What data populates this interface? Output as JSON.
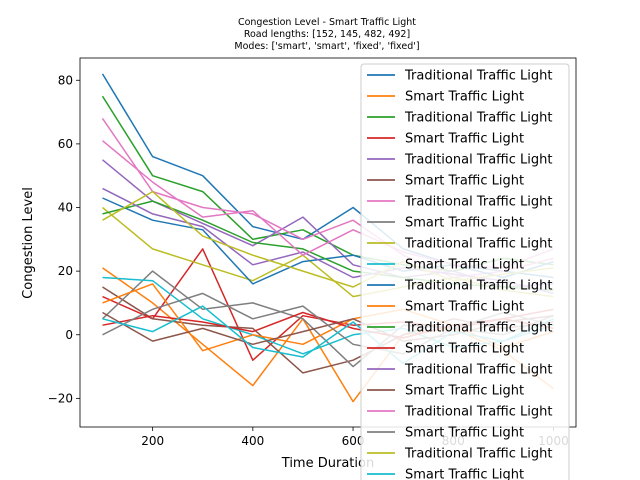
{
  "chart_data": {
    "type": "line",
    "title_lines": [
      "Congestion Level - Smart Traffic Light",
      "Road lengths: [152, 145, 482, 492]",
      "Modes: ['smart', 'smart', 'fixed', 'fixed']"
    ],
    "xlabel": "Time Duration",
    "ylabel": "Congestion Level",
    "xlim": [
      55,
      1045
    ],
    "ylim": [
      -29,
      87
    ],
    "x_ticks": [
      200,
      400,
      600,
      800,
      1000
    ],
    "x_tick_labels": [
      "200",
      "400",
      "600",
      "800",
      "1000"
    ],
    "y_ticks": [
      -20,
      0,
      20,
      40,
      60,
      80
    ],
    "y_tick_labels": [
      "−20",
      "0",
      "20",
      "40",
      "60",
      "80"
    ],
    "grid": false,
    "legend_position": "top-right",
    "x": [
      100,
      200,
      300,
      400,
      500,
      600,
      700,
      800,
      900,
      1000
    ],
    "series": [
      {
        "name": "Traditional Traffic Light",
        "color": "#1f77b4",
        "values": [
          82,
          56,
          50,
          34,
          30,
          40,
          27,
          22,
          20,
          18
        ]
      },
      {
        "name": "Smart Traffic Light",
        "color": "#ff7f0e",
        "values": [
          21,
          10,
          -3,
          -16,
          5,
          -21,
          0,
          2,
          -5,
          -17
        ]
      },
      {
        "name": "Traditional Traffic Light",
        "color": "#2ca02c",
        "values": [
          75,
          50,
          45,
          30,
          33,
          25,
          22,
          20,
          24,
          22
        ]
      },
      {
        "name": "Smart Traffic Light",
        "color": "#d62728",
        "values": [
          12,
          5,
          27,
          -8,
          6,
          3,
          4,
          2,
          5,
          8
        ]
      },
      {
        "name": "Traditional Traffic Light",
        "color": "#9467bd",
        "values": [
          55,
          42,
          35,
          28,
          37,
          22,
          18,
          20,
          15,
          16
        ]
      },
      {
        "name": "Smart Traffic Light",
        "color": "#8c564b",
        "values": [
          15,
          5,
          3,
          2,
          -12,
          -8,
          0,
          5,
          2,
          4
        ]
      },
      {
        "name": "Traditional Traffic Light",
        "color": "#e377c2",
        "values": [
          68,
          45,
          40,
          38,
          30,
          36,
          25,
          18,
          20,
          24
        ]
      },
      {
        "name": "Smart Traffic Light",
        "color": "#7f7f7f",
        "values": [
          5,
          20,
          8,
          10,
          5,
          -10,
          3,
          2,
          0,
          6
        ]
      },
      {
        "name": "Traditional Traffic Light",
        "color": "#bcbd22",
        "values": [
          40,
          27,
          22,
          17,
          25,
          12,
          15,
          18,
          14,
          12
        ]
      },
      {
        "name": "Smart Traffic Light",
        "color": "#17becf",
        "values": [
          18,
          17,
          5,
          0,
          -6,
          0,
          2,
          -4,
          -2,
          3
        ]
      },
      {
        "name": "Traditional Traffic Light",
        "color": "#1f77b4",
        "values": [
          43,
          36,
          33,
          16,
          23,
          25,
          20,
          22,
          18,
          23
        ]
      },
      {
        "name": "Smart Traffic Light",
        "color": "#ff7f0e",
        "values": [
          10,
          16,
          -5,
          0,
          -3,
          5,
          8,
          3,
          -4,
          1
        ]
      },
      {
        "name": "Traditional Traffic Light",
        "color": "#2ca02c",
        "values": [
          38,
          42,
          36,
          29,
          27,
          20,
          18,
          16,
          15,
          14
        ]
      },
      {
        "name": "Smart Traffic Light",
        "color": "#d62728",
        "values": [
          3,
          6,
          4,
          1,
          7,
          2,
          -1,
          3,
          5,
          2
        ]
      },
      {
        "name": "Traditional Traffic Light",
        "color": "#9467bd",
        "values": [
          46,
          38,
          34,
          22,
          26,
          18,
          21,
          19,
          17,
          13
        ]
      },
      {
        "name": "Smart Traffic Light",
        "color": "#8c564b",
        "values": [
          7,
          -2,
          2,
          -3,
          1,
          5,
          -2,
          0,
          4,
          6
        ]
      },
      {
        "name": "Traditional Traffic Light",
        "color": "#e377c2",
        "values": [
          61,
          48,
          37,
          39,
          25,
          33,
          26,
          22,
          21,
          27
        ]
      },
      {
        "name": "Smart Traffic Light",
        "color": "#7f7f7f",
        "values": [
          0,
          8,
          13,
          5,
          9,
          -3,
          -6,
          2,
          7,
          3
        ]
      },
      {
        "name": "Traditional Traffic Light",
        "color": "#bcbd22",
        "values": [
          36,
          45,
          31,
          25,
          20,
          15,
          23,
          17,
          19,
          21
        ]
      },
      {
        "name": "Smart Traffic Light",
        "color": "#17becf",
        "values": [
          5,
          1,
          9,
          -4,
          -7,
          4,
          -9,
          1,
          -2,
          5
        ]
      }
    ]
  }
}
